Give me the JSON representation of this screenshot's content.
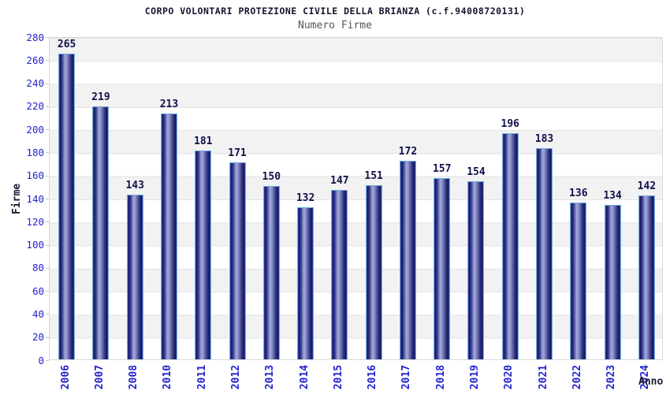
{
  "chart_data": {
    "type": "bar",
    "title": "CORPO VOLONTARI PROTEZIONE CIVILE DELLA BRIANZA (c.f.94008720131)",
    "subtitle": "Numero Firme",
    "xlabel": "Anno",
    "ylabel": "Firme",
    "categories": [
      "2006",
      "2007",
      "2008",
      "2010",
      "2011",
      "2012",
      "2013",
      "2014",
      "2015",
      "2016",
      "2017",
      "2018",
      "2019",
      "2020",
      "2021",
      "2022",
      "2023",
      "2024"
    ],
    "values": [
      265,
      219,
      143,
      213,
      181,
      171,
      150,
      132,
      147,
      151,
      172,
      157,
      154,
      196,
      183,
      136,
      134,
      142
    ],
    "ylim": [
      0,
      280
    ],
    "ytick_step": 20,
    "grid": true,
    "legend": "none",
    "colors": {
      "axis_label_text": "#2323cf",
      "value_label_text": "#10104a",
      "title_text": "#15152e",
      "subtitle_text": "#565656",
      "band_gray": "#f2f2f2",
      "band_white": "#ffffff",
      "grid_line": "#e3e3e3",
      "plot_border": "#d9d9d9",
      "bar_outline": "#74aede",
      "bar_dark": "#17175c",
      "bar_light": "#a3aade",
      "bar_edge_royal": "#2f4ecb"
    }
  }
}
